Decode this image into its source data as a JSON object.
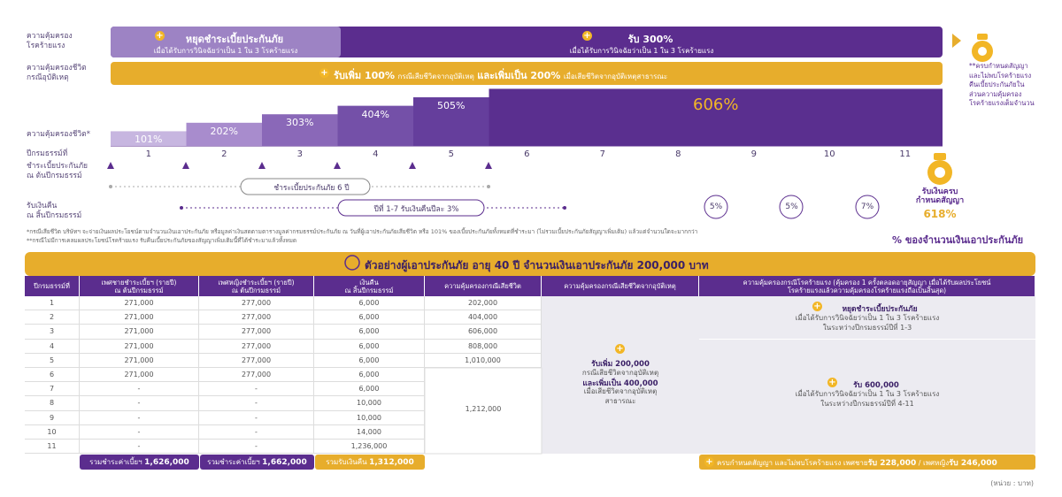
{
  "ci_row": {
    "label": "ความคุ้มครอง\nโรคร้ายแรง",
    "left": {
      "title": "หยุดชำระเบี้ยประกันภัย",
      "sub": "เมื่อได้รับการวินิจฉัยว่าเป็น 1 ใน 3 โรคร้ายแรง"
    },
    "right": {
      "title": "รับ 300%",
      "sub": "เมื่อได้รับการวินิจฉัยว่าเป็น 1 ใน 3 โรคร้ายแรง"
    }
  },
  "accident_row": {
    "label": "ความคุ้มครองชีวิต\nกรณีอุบัติเหตุ",
    "text_a": "รับเพิ่ม 100%",
    "text_b": "กรณีเสียชีวิตจากอุบัติเหตุ",
    "text_c": "และเพิ่มเป็น 200%",
    "text_d": "เมื่อเสียชีวิตจากอุบัติเหตุสาธารณะ"
  },
  "life_row": {
    "label": "ความคุ้มครองชีวิต*",
    "steps": [
      {
        "value": 101,
        "label": "101%"
      },
      {
        "value": 202,
        "label": "202%"
      },
      {
        "value": 303,
        "label": "303%"
      },
      {
        "value": 404,
        "label": "404%"
      },
      {
        "value": 505,
        "label": "505%"
      },
      {
        "value": 606,
        "label": "606%"
      }
    ]
  },
  "years": {
    "label": "ปีกรมธรรม์ที่",
    "values": [
      1,
      2,
      3,
      4,
      5,
      6,
      7,
      8,
      9,
      10,
      11
    ]
  },
  "premium_row": {
    "label": "ชำระเบี้ยประกันภัย\nณ ต้นปีกรมธรรม์",
    "pill": "ชำระเบี้ยประกันภัย 6 ปี"
  },
  "refund_row": {
    "label": "รับเงินคืน\nณ สิ้นปีกรมธรรม์",
    "pill": "ปีที่ 1-7 รับเงินคืนปีละ 3%",
    "circles": [
      "5%",
      "5%",
      "7%"
    ]
  },
  "maturity": {
    "label": "รับเงินครบ\nกำหนดสัญญา",
    "value": "618%"
  },
  "note_right": "**ครบกำหนดสัญญา\nและไม่พบโรคร้ายแรง\nคืนเบี้ยประกันภัยใน\nส่วนความคุ้มครอง\nโรคร้ายแรงเต็มจำนวน",
  "unit_caption": "% ของจำนวนเงินเอาประกันภัย",
  "footnotes": [
    "*กรณีเสียชีวิต บริษัทฯ จะจ่ายเงินผลประโยชน์ตามจำนวนเงินเอาประกันภัย หรือมูลค่าเงินสดตามตารางมูลค่ากรมธรรม์ประกันภัย ณ วันที่ผู้เอาประกันภัยเสียชีวิต หรือ 101% ของเบี้ยประกันภัยทั้งหมดที่ชำระมา (ไม่รวมเบี้ยประกันภัยสัญญาเพิ่มเติม) แล้วแต่จำนวนใดจะมากกว่า",
    "**กรณีไม่มีการเคลมผลประโยชน์โรคร้ายแรง รับคืนเบี้ยประกันภัยของสัญญาเพิ่มเติมนี้ที่ได้ชำระมาแล้วทั้งหมด"
  ],
  "table": {
    "title": "ตัวอย่างผู้เอาประกันภัย อายุ 40 ปี จำนวนเงินเอาประกันภัย 200,000 บาท",
    "headers": [
      "ปีกรมธรรม์ที่",
      "เพศชายชำระเบี้ยฯ (รายปี)\nณ ต้นปีกรมธรรม์",
      "เพศหญิงชำระเบี้ยฯ (รายปี)\nณ ต้นปีกรมธรรม์",
      "เงินคืน\nณ สิ้นปีกรมธรรม์",
      "ความคุ้มครองกรณีเสียชีวิต",
      "ความคุ้มครองกรณีเสียชีวิตจากอุบัติเหตุ",
      "ความคุ้มครองกรณีโรคร้ายแรง (คุ้มครอง 1 ครั้งตลอดอายุสัญญา เมื่อได้รับผลประโยชน์\nโรคร้ายแรงแล้วความคุ้มครองโรคร้ายแรงถือเป็นสิ้นสุด)"
    ],
    "rows": [
      [
        "1",
        "271,000",
        "277,000",
        "6,000"
      ],
      [
        "2",
        "271,000",
        "277,000",
        "6,000"
      ],
      [
        "3",
        "271,000",
        "277,000",
        "6,000"
      ],
      [
        "4",
        "271,000",
        "277,000",
        "6,000"
      ],
      [
        "5",
        "271,000",
        "277,000",
        "6,000"
      ],
      [
        "6",
        "271,000",
        "277,000",
        "6,000"
      ],
      [
        "7",
        "-",
        "-",
        "6,000"
      ],
      [
        "8",
        "-",
        "-",
        "10,000"
      ],
      [
        "9",
        "-",
        "-",
        "10,000"
      ],
      [
        "10",
        "-",
        "-",
        "14,000"
      ],
      [
        "11",
        "-",
        "-",
        "1,236,000"
      ]
    ],
    "death_values": [
      "202,000",
      "404,000",
      "606,000",
      "808,000",
      "1,010,000"
    ],
    "death_merged": "1,212,000",
    "accident": {
      "title": "รับเพิ่ม 200,000",
      "line_1": "กรณีเสียชีวิตจากอุบัติเหตุ",
      "title_2": "และเพิ่มเป็น 400,000",
      "line_2": "เมื่อเสียชีวิตจากอุบัติเหตุ\nสาธารณะ"
    },
    "ci_top": {
      "title": "หยุดชำระเบี้ยประกันภัย",
      "sub": "เมื่อได้รับการวินิจฉัยว่าเป็น 1 ใน 3 โรคร้ายแรง\nในระหว่างปีกรมธรรม์ปีที่ 1-3"
    },
    "ci_bottom": {
      "title": "รับ 600,000",
      "sub": "เมื่อได้รับการวินิจฉัยว่าเป็น 1 ใน 3 โรคร้ายแรง\nในระหว่างปีกรมธรรม์ปีที่ 4-11"
    },
    "totals": [
      {
        "label": "รวมชำระค่าเบี้ยฯ",
        "value": "1,626,000"
      },
      {
        "label": "รวมชำระค่าเบี้ยฯ",
        "value": "1,662,000"
      },
      {
        "label": "รวมรับเงินคืน",
        "value": "1,312,000"
      }
    ],
    "maturity_total": {
      "text_a": "ครบกำหนดสัญญา และไม่พบโรคร้ายแรง เพศชาย",
      "male": "รับ 228,000",
      "sep": " / เพศหญิง",
      "female": "รับ 246,000"
    },
    "unit": "(หน่วย : บาท)"
  }
}
